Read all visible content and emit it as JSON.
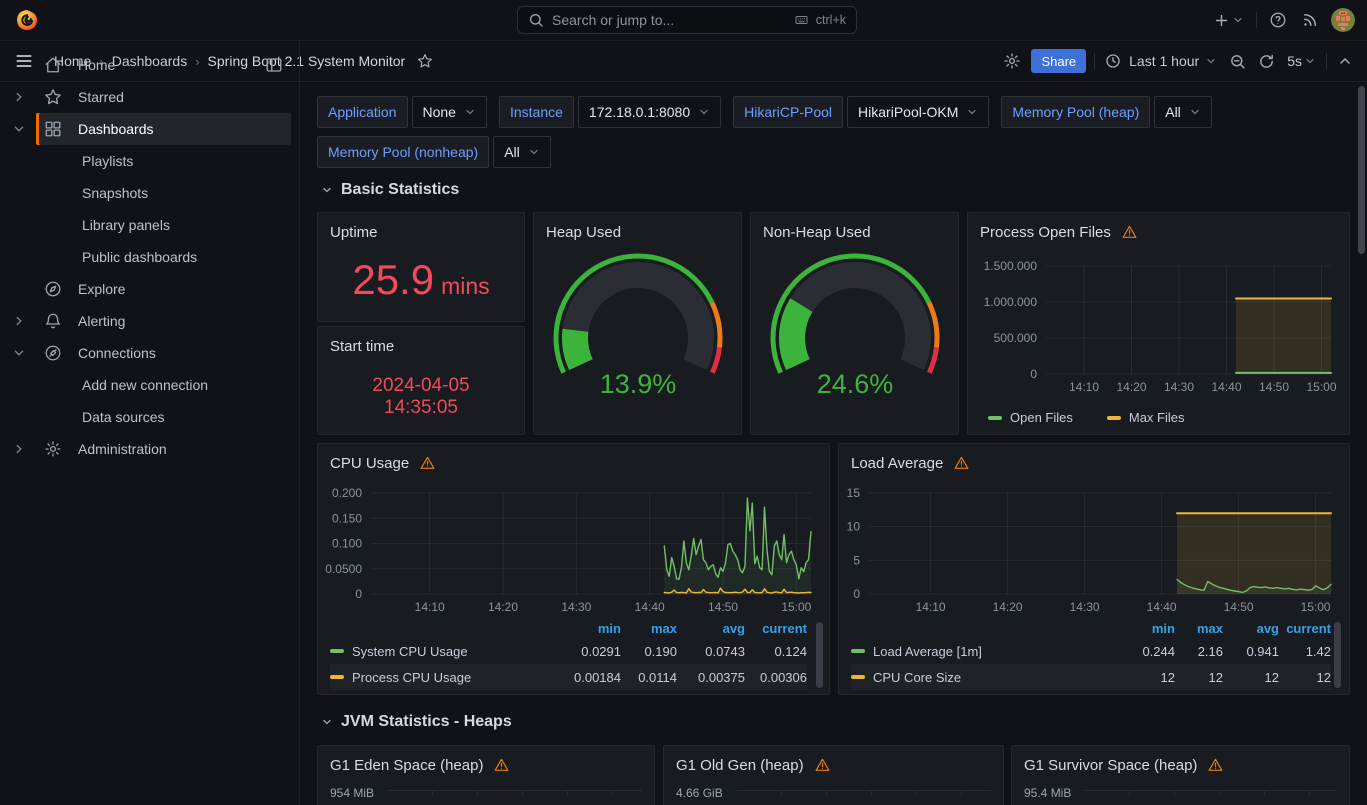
{
  "topnav": {
    "search_placeholder": "Search or jump to...",
    "shortcut": "ctrl+k"
  },
  "breadcrumb": {
    "items": [
      "Home",
      "Dashboards",
      "Spring Boot 2.1 System Monitor"
    ]
  },
  "toolbar": {
    "share_label": "Share",
    "time_range": "Last 1 hour",
    "refresh_interval": "5s"
  },
  "sidebar": {
    "items": [
      {
        "label": "Home",
        "icon": "home",
        "level": 0,
        "trailing": "dock"
      },
      {
        "label": "Starred",
        "icon": "star",
        "level": 0,
        "chevron": "right"
      },
      {
        "label": "Dashboards",
        "icon": "grid",
        "level": 0,
        "chevron": "down",
        "active": true
      },
      {
        "label": "Playlists",
        "level": 1
      },
      {
        "label": "Snapshots",
        "level": 1
      },
      {
        "label": "Library panels",
        "level": 1
      },
      {
        "label": "Public dashboards",
        "level": 1
      },
      {
        "label": "Explore",
        "icon": "compass",
        "level": 0
      },
      {
        "label": "Alerting",
        "icon": "bell",
        "level": 0,
        "chevron": "right"
      },
      {
        "label": "Connections",
        "icon": "plug",
        "level": 0,
        "chevron": "down"
      },
      {
        "label": "Add new connection",
        "level": 1
      },
      {
        "label": "Data sources",
        "level": 1
      },
      {
        "label": "Administration",
        "icon": "gear",
        "level": 0,
        "chevron": "right"
      }
    ]
  },
  "variables": [
    {
      "label": "Application",
      "value": "None"
    },
    {
      "label": "Instance",
      "value": "172.18.0.1:8080"
    },
    {
      "label": "HikariCP-Pool",
      "value": "HikariPool-OKM"
    },
    {
      "label": "Memory Pool (heap)",
      "value": "All"
    },
    {
      "label": "Memory Pool (nonheap)",
      "value": "All"
    }
  ],
  "sections": {
    "basic": "Basic Statistics",
    "jvm": "JVM Statistics - Heaps"
  },
  "panels": {
    "uptime": {
      "title": "Uptime",
      "value": "25.9",
      "unit": "mins"
    },
    "start_time": {
      "title": "Start time",
      "date": "2024-04-05",
      "time": "14:35:05"
    },
    "heap_used": {
      "title": "Heap Used",
      "percent": 13.9,
      "label": "13.9%"
    },
    "nonheap_used": {
      "title": "Non-Heap Used",
      "percent": 24.6,
      "label": "24.6%"
    },
    "open_files": {
      "title": "Process Open Files"
    },
    "cpu": {
      "title": "CPU Usage"
    },
    "load": {
      "title": "Load Average"
    },
    "g1_eden": {
      "title": "G1 Eden Space (heap)",
      "axis_label": "954 MiB"
    },
    "g1_old": {
      "title": "G1 Old Gen (heap)",
      "axis_label": "4.66 GiB"
    },
    "g1_survivor": {
      "title": "G1 Survivor Space (heap)",
      "axis_label": "95.4 MiB"
    }
  },
  "gauge": {
    "start_angle": 205,
    "end_angle": -25,
    "thresholds": [
      {
        "to": 0.78,
        "color": "#3CB43C"
      },
      {
        "to": 0.92,
        "color": "#EB7B18"
      },
      {
        "to": 1,
        "color": "#E02F44"
      }
    ]
  },
  "colors": {
    "green": "#73BF69",
    "yellow": "#EAB839",
    "stat_red": "#F2495C",
    "gauge_green": "#3CB43C",
    "warn_orange": "#EB7B18",
    "threshold_red": "#E02F44",
    "share_blue": "#3D71D9",
    "var_label_blue": "#6E9FFF",
    "legend_header_blue": "#33A2E5",
    "brand_orange": "#F46800"
  },
  "icons": [
    "grafana-logo",
    "search",
    "keyboard",
    "plus",
    "help-circle",
    "rss",
    "hamburger-menu",
    "star",
    "gear",
    "clock",
    "zoom-out-magnifier",
    "refresh",
    "chevron",
    "home",
    "grid",
    "compass",
    "bell",
    "plug",
    "dock-sidebar",
    "warning-triangle"
  ],
  "chart_data": [
    {
      "id": "open_files",
      "type": "area",
      "title": "Process Open Files",
      "grid": true,
      "legend_position": "bottom",
      "x_domain": [
        2,
        62
      ],
      "y_domain": [
        0,
        1500000
      ],
      "x_ticks": [
        {
          "v": 10,
          "label": "14:10"
        },
        {
          "v": 20,
          "label": "14:20"
        },
        {
          "v": 30,
          "label": "14:30"
        },
        {
          "v": 40,
          "label": "14:40"
        },
        {
          "v": 50,
          "label": "14:50"
        },
        {
          "v": 60,
          "label": "15:00"
        }
      ],
      "y_ticks": [
        {
          "v": 0,
          "label": "0"
        },
        {
          "v": 500000,
          "label": "500.000"
        },
        {
          "v": 1000000,
          "label": "1.000.000"
        },
        {
          "v": 1500000,
          "label": "1.500.000"
        }
      ],
      "series": [
        {
          "name": "Max Files",
          "color": "#EAB839",
          "fill": "rgba(234,184,57,0.13)",
          "width": 2,
          "x0": 42,
          "dx": 20,
          "values": [
            1048576,
            1048576
          ]
        },
        {
          "name": "Open Files",
          "color": "#73BF69",
          "fill": "rgba(115,191,105,0.10)",
          "width": 2,
          "x0": 42,
          "dx": 20,
          "values": [
            15000,
            15000
          ]
        }
      ],
      "legend": {
        "type": "list",
        "items": [
          {
            "label": "Open Files",
            "color": "#73BF69"
          },
          {
            "label": "Max Files",
            "color": "#EAB839"
          }
        ]
      }
    },
    {
      "id": "cpu",
      "type": "line",
      "title": "CPU Usage",
      "grid": true,
      "legend_position": "bottom-table",
      "x_domain": [
        2,
        62
      ],
      "y_domain": [
        0,
        0.2
      ],
      "x_ticks": [
        {
          "v": 10,
          "label": "14:10"
        },
        {
          "v": 20,
          "label": "14:20"
        },
        {
          "v": 30,
          "label": "14:30"
        },
        {
          "v": 40,
          "label": "14:40"
        },
        {
          "v": 50,
          "label": "14:50"
        },
        {
          "v": 60,
          "label": "15:00"
        }
      ],
      "y_ticks": [
        {
          "v": 0,
          "label": "0"
        },
        {
          "v": 0.05,
          "label": "0.0500"
        },
        {
          "v": 0.1,
          "label": "0.100"
        },
        {
          "v": 0.15,
          "label": "0.150"
        },
        {
          "v": 0.2,
          "label": "0.200"
        }
      ],
      "series": [
        {
          "name": "System CPU Usage",
          "color": "#73BF69",
          "fill": "rgba(115,191,105,0.09)",
          "width": 1.4,
          "x0": 42,
          "dx": 0.3333,
          "values": [
            0.095,
            0.048,
            0.035,
            0.072,
            0.055,
            0.03,
            0.0291,
            0.052,
            0.105,
            0.062,
            0.048,
            0.075,
            0.11,
            0.078,
            0.095,
            0.108,
            0.068,
            0.062,
            0.048,
            0.055,
            0.058,
            0.04,
            0.033,
            0.052,
            0.045,
            0.06,
            0.098,
            0.1,
            0.085,
            0.078,
            0.068,
            0.048,
            0.042,
            0.055,
            0.19,
            0.125,
            0.18,
            0.06,
            0.075,
            0.052,
            0.048,
            0.172,
            0.088,
            0.045,
            0.038,
            0.095,
            0.105,
            0.078,
            0.068,
            0.118,
            0.062,
            0.078,
            0.085,
            0.068,
            0.058,
            0.03,
            0.052,
            0.044,
            0.062,
            0.068,
            0.124
          ]
        },
        {
          "name": "Process CPU Usage",
          "color": "#EAB839",
          "fill": "rgba(234,184,57,0.08)",
          "width": 1.4,
          "x0": 42,
          "dx": 0.3333,
          "values": [
            0.003,
            0.0025,
            0.002,
            0.0035,
            0.008,
            0.003,
            0.0025,
            0.003,
            0.0028,
            0.00184,
            0.0105,
            0.004,
            0.003,
            0.0026,
            0.0032,
            0.0028,
            0.009,
            0.0035,
            0.003,
            0.0025,
            0.0028,
            0.0032,
            0.0024,
            0.0114,
            0.005,
            0.003,
            0.0028,
            0.0025,
            0.003,
            0.0035,
            0.0028,
            0.0025,
            0.004,
            0.0095,
            0.0032,
            0.0028,
            0.0085,
            0.003,
            0.0026,
            0.0024,
            0.003,
            0.0105,
            0.0034,
            0.0026,
            0.0022,
            0.0035,
            0.004,
            0.0028,
            0.0026,
            0.0095,
            0.003,
            0.0032,
            0.0036,
            0.0028,
            0.0024,
            0.002,
            0.0028,
            0.0024,
            0.0032,
            0.0034,
            0.00306
          ]
        }
      ],
      "legend": {
        "type": "table",
        "headers": [
          "min",
          "max",
          "avg",
          "current"
        ],
        "rows": [
          {
            "label": "System CPU Usage",
            "color": "#73BF69",
            "values": [
              "0.0291",
              "0.190",
              "0.0743",
              "0.124"
            ]
          },
          {
            "label": "Process CPU Usage",
            "color": "#EAB839",
            "values": [
              "0.00184",
              "0.0114",
              "0.00375",
              "0.00306"
            ]
          }
        ]
      }
    },
    {
      "id": "load",
      "type": "line",
      "title": "Load Average",
      "grid": true,
      "legend_position": "bottom-table",
      "x_domain": [
        2,
        62
      ],
      "y_domain": [
        0,
        15
      ],
      "x_ticks": [
        {
          "v": 10,
          "label": "14:10"
        },
        {
          "v": 20,
          "label": "14:20"
        },
        {
          "v": 30,
          "label": "14:30"
        },
        {
          "v": 40,
          "label": "14:40"
        },
        {
          "v": 50,
          "label": "14:50"
        },
        {
          "v": 60,
          "label": "15:00"
        }
      ],
      "y_ticks": [
        {
          "v": 0,
          "label": "0"
        },
        {
          "v": 5,
          "label": "5"
        },
        {
          "v": 10,
          "label": "10"
        },
        {
          "v": 15,
          "label": "15"
        }
      ],
      "series": [
        {
          "name": "CPU Core Size",
          "color": "#EAB839",
          "fill": "rgba(234,184,57,0.13)",
          "width": 2,
          "x0": 42,
          "dx": 20,
          "values": [
            12,
            12
          ]
        },
        {
          "name": "Load Average [1m]",
          "color": "#73BF69",
          "fill": "rgba(115,191,105,0.06)",
          "width": 1.4,
          "x0": 42,
          "dx": 0.5,
          "values": [
            2.16,
            1.7,
            1.35,
            1.1,
            0.9,
            0.75,
            0.62,
            0.55,
            1.85,
            1.5,
            1.2,
            1.0,
            0.85,
            0.7,
            0.55,
            0.45,
            0.35,
            0.244,
            0.45,
            0.95,
            1.1,
            1.0,
            0.95,
            1.05,
            0.9,
            0.85,
            0.95,
            0.85,
            0.75,
            0.85,
            0.7,
            0.62,
            0.72,
            0.66,
            0.58,
            0.65,
            1.2,
            0.9,
            0.62,
            0.9,
            1.42
          ]
        }
      ],
      "legend": {
        "type": "table",
        "headers": [
          "min",
          "max",
          "avg",
          "current"
        ],
        "rows": [
          {
            "label": "Load Average [1m]",
            "color": "#73BF69",
            "values": [
              "0.244",
              "2.16",
              "0.941",
              "1.42"
            ]
          },
          {
            "label": "CPU Core Size",
            "color": "#EAB839",
            "values": [
              "12",
              "12",
              "12",
              "12"
            ]
          }
        ]
      }
    }
  ]
}
